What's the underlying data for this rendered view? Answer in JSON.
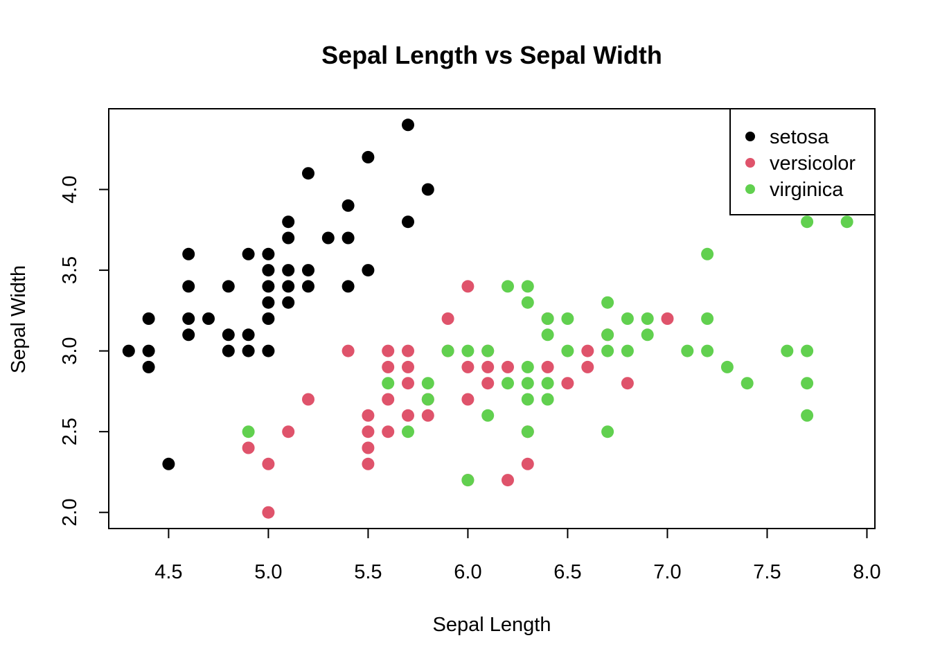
{
  "chart_data": {
    "type": "scatter",
    "title": "Sepal Length vs Sepal Width",
    "xlabel": "Sepal Length",
    "ylabel": "Sepal Width",
    "xlim": [
      4.2,
      8.04
    ],
    "ylim": [
      1.9,
      4.5
    ],
    "xticks": [
      "4.5",
      "5.0",
      "5.5",
      "6.0",
      "6.5",
      "7.0",
      "7.5",
      "8.0"
    ],
    "yticks": [
      "2.0",
      "2.5",
      "3.0",
      "3.5",
      "4.0"
    ],
    "grid": false,
    "legend_position": "top-right",
    "series": [
      {
        "name": "setosa",
        "color": "#000000",
        "points": [
          [
            4.3,
            3.0
          ],
          [
            4.4,
            3.2
          ],
          [
            4.4,
            3.0
          ],
          [
            4.4,
            2.9
          ],
          [
            4.5,
            2.3
          ],
          [
            4.6,
            3.6
          ],
          [
            4.6,
            3.4
          ],
          [
            4.6,
            3.2
          ],
          [
            4.6,
            3.1
          ],
          [
            4.7,
            3.2
          ],
          [
            4.8,
            3.4
          ],
          [
            4.8,
            3.1
          ],
          [
            4.8,
            3.0
          ],
          [
            4.9,
            3.6
          ],
          [
            4.9,
            3.1
          ],
          [
            4.9,
            3.0
          ],
          [
            5.0,
            3.6
          ],
          [
            5.0,
            3.5
          ],
          [
            5.0,
            3.4
          ],
          [
            5.0,
            3.3
          ],
          [
            5.0,
            3.2
          ],
          [
            5.0,
            3.0
          ],
          [
            5.1,
            3.8
          ],
          [
            5.1,
            3.7
          ],
          [
            5.1,
            3.5
          ],
          [
            5.1,
            3.4
          ],
          [
            5.1,
            3.3
          ],
          [
            5.2,
            4.1
          ],
          [
            5.2,
            3.5
          ],
          [
            5.2,
            3.4
          ],
          [
            5.3,
            3.7
          ],
          [
            5.4,
            3.9
          ],
          [
            5.4,
            3.7
          ],
          [
            5.4,
            3.4
          ],
          [
            5.5,
            4.2
          ],
          [
            5.5,
            3.5
          ],
          [
            5.7,
            4.4
          ],
          [
            5.7,
            3.8
          ],
          [
            5.8,
            4.0
          ]
        ]
      },
      {
        "name": "versicolor",
        "color": "#DF536B",
        "points": [
          [
            4.9,
            2.4
          ],
          [
            5.0,
            2.3
          ],
          [
            5.0,
            2.0
          ],
          [
            5.1,
            2.5
          ],
          [
            5.2,
            2.7
          ],
          [
            5.4,
            3.0
          ],
          [
            5.5,
            2.6
          ],
          [
            5.5,
            2.5
          ],
          [
            5.5,
            2.4
          ],
          [
            5.5,
            2.3
          ],
          [
            5.6,
            3.0
          ],
          [
            5.6,
            2.9
          ],
          [
            5.6,
            2.7
          ],
          [
            5.6,
            2.5
          ],
          [
            5.7,
            3.0
          ],
          [
            5.7,
            2.9
          ],
          [
            5.7,
            2.8
          ],
          [
            5.7,
            2.6
          ],
          [
            5.8,
            2.7
          ],
          [
            5.8,
            2.6
          ],
          [
            5.9,
            3.2
          ],
          [
            5.9,
            3.0
          ],
          [
            6.0,
            3.4
          ],
          [
            6.0,
            2.9
          ],
          [
            6.0,
            2.7
          ],
          [
            6.0,
            2.2
          ],
          [
            6.1,
            3.0
          ],
          [
            6.1,
            2.9
          ],
          [
            6.1,
            2.8
          ],
          [
            6.2,
            2.9
          ],
          [
            6.2,
            2.2
          ],
          [
            6.3,
            2.3
          ],
          [
            6.3,
            2.5
          ],
          [
            6.4,
            2.9
          ],
          [
            6.4,
            3.2
          ],
          [
            6.5,
            2.8
          ],
          [
            6.6,
            3.0
          ],
          [
            6.6,
            2.9
          ],
          [
            6.7,
            3.1
          ],
          [
            6.8,
            2.8
          ],
          [
            7.0,
            3.2
          ]
        ]
      },
      {
        "name": "virginica",
        "color": "#61D04F",
        "points": [
          [
            4.9,
            2.5
          ],
          [
            5.6,
            2.8
          ],
          [
            5.7,
            2.5
          ],
          [
            5.8,
            2.8
          ],
          [
            5.8,
            2.7
          ],
          [
            5.9,
            3.0
          ],
          [
            6.0,
            3.0
          ],
          [
            6.0,
            2.2
          ],
          [
            6.1,
            3.0
          ],
          [
            6.1,
            2.6
          ],
          [
            6.2,
            3.4
          ],
          [
            6.2,
            2.8
          ],
          [
            6.3,
            3.4
          ],
          [
            6.3,
            3.3
          ],
          [
            6.3,
            2.9
          ],
          [
            6.3,
            2.8
          ],
          [
            6.3,
            2.7
          ],
          [
            6.3,
            2.5
          ],
          [
            6.4,
            3.2
          ],
          [
            6.4,
            3.1
          ],
          [
            6.4,
            2.8
          ],
          [
            6.4,
            2.7
          ],
          [
            6.5,
            3.2
          ],
          [
            6.5,
            3.0
          ],
          [
            6.7,
            3.3
          ],
          [
            6.7,
            3.1
          ],
          [
            6.7,
            3.0
          ],
          [
            6.7,
            2.5
          ],
          [
            6.8,
            3.2
          ],
          [
            6.8,
            3.0
          ],
          [
            6.9,
            3.2
          ],
          [
            6.9,
            3.1
          ],
          [
            7.1,
            3.0
          ],
          [
            7.2,
            3.6
          ],
          [
            7.2,
            3.2
          ],
          [
            7.2,
            3.0
          ],
          [
            7.3,
            2.9
          ],
          [
            7.4,
            2.8
          ],
          [
            7.6,
            3.0
          ],
          [
            7.7,
            3.8
          ],
          [
            7.7,
            3.0
          ],
          [
            7.7,
            2.8
          ],
          [
            7.7,
            2.6
          ],
          [
            7.9,
            3.8
          ]
        ]
      }
    ]
  }
}
